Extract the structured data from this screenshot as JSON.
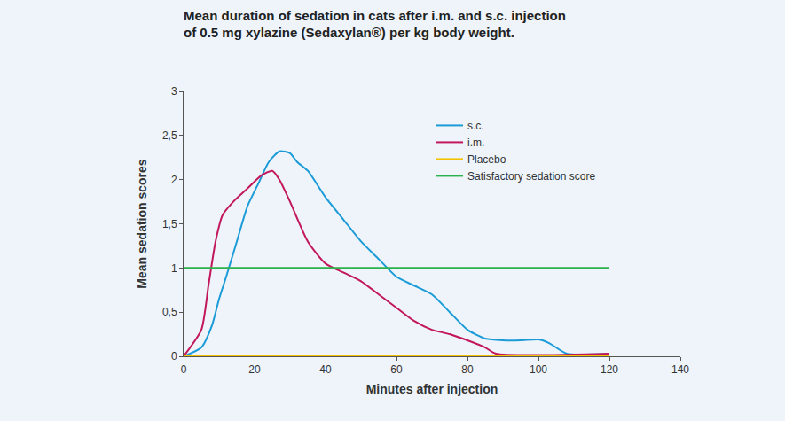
{
  "chart_data": {
    "type": "line",
    "title": "Mean duration of sedation in cats after i.m. and s.c. injection of 0.5 mg xylazine (Sedaxylan®) per kg body weight.",
    "x_label": "Minutes after injection",
    "y_label": "Mean sedation scores",
    "xlim": [
      0,
      140
    ],
    "xticks": [
      0,
      20,
      40,
      60,
      80,
      100,
      120,
      140
    ],
    "ylim": [
      0,
      3
    ],
    "yticks": [
      0,
      {
        "value": 0.5,
        "label": "0,5"
      },
      1,
      {
        "value": 1.5,
        "label": "1,5"
      },
      2,
      {
        "value": 2.5,
        "label": "2,5"
      },
      3
    ],
    "grid": false,
    "legend": "upper center",
    "series": [
      {
        "name": "s.c.",
        "color": "#1b9bd7",
        "x": [
          0,
          5,
          8,
          10,
          12,
          15,
          18,
          21,
          24,
          27,
          30,
          32,
          35,
          40,
          45,
          50,
          55,
          60,
          65,
          70,
          75,
          80,
          85,
          90,
          95,
          100,
          103,
          108,
          120
        ],
        "values": [
          0,
          0.1,
          0.35,
          0.65,
          0.9,
          1.3,
          1.7,
          1.95,
          2.2,
          2.32,
          2.3,
          2.2,
          2.1,
          1.8,
          1.55,
          1.3,
          1.1,
          0.9,
          0.8,
          0.7,
          0.5,
          0.3,
          0.2,
          0.18,
          0.18,
          0.19,
          0.15,
          0.03,
          0.03
        ]
      },
      {
        "name": "i.m.",
        "color": "#c2185b",
        "x": [
          0,
          5,
          7,
          9,
          11,
          14,
          18,
          22,
          25,
          27,
          30,
          35,
          40,
          45,
          50,
          55,
          60,
          65,
          70,
          75,
          80,
          85,
          88,
          120
        ],
        "values": [
          0,
          0.3,
          0.8,
          1.3,
          1.6,
          1.75,
          1.9,
          2.05,
          2.1,
          2.0,
          1.75,
          1.3,
          1.05,
          0.95,
          0.85,
          0.7,
          0.55,
          0.4,
          0.3,
          0.25,
          0.18,
          0.1,
          0.03,
          0.03
        ]
      },
      {
        "name": "Placebo",
        "color": "#f2c200",
        "x": [
          0,
          120
        ],
        "values": [
          0.01,
          0.01
        ]
      },
      {
        "name": "Satisfactory sedation score",
        "color": "#2bb24c",
        "x": [
          0,
          120
        ],
        "values": [
          1,
          1
        ]
      }
    ]
  }
}
